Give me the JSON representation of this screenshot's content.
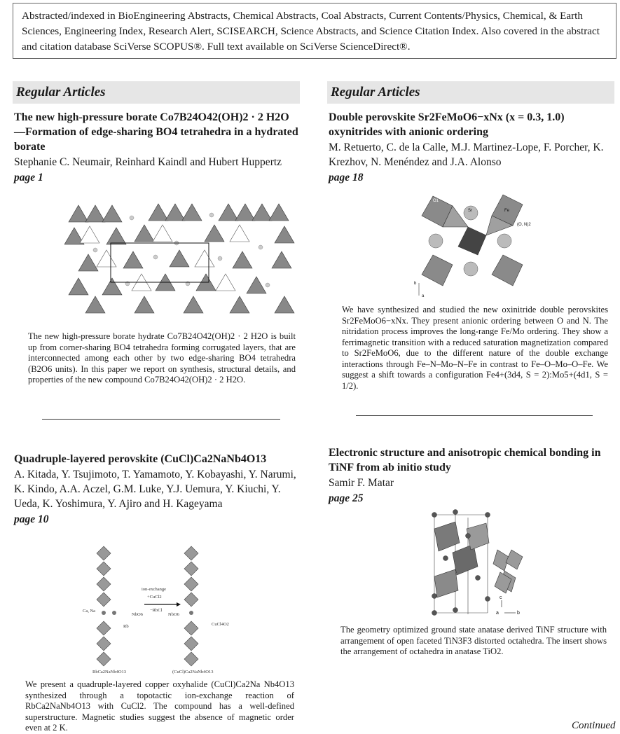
{
  "notice": "Abstracted/indexed in BioEngineering Abstracts, Chemical Abstracts, Coal Abstracts, Current Contents/Physics, Chemical, & Earth Sciences, Engineering Index, Research Alert, SCISEARCH, Science Abstracts, and Science Citation Index. Also covered in the abstract and citation database SciVerse SCOPUS®. Full text available on SciVerse ScienceDirect®.",
  "section_left": "Regular Articles",
  "section_right": "Regular Articles",
  "articles": [
    {
      "title": "The new high-pressure borate Co7B24O42(OH)2 · 2 H2O—Formation of edge-sharing BO4 tetrahedra in a hydrated borate",
      "authors": "Stephanie C. Neumair, Reinhard Kaindl and Hubert Huppertz",
      "page": "page 1",
      "abstract": "The new high-pressure borate hydrate Co7B24O42(OH)2 · 2 H2O is built up from corner-sharing BO4 tetrahedra forming corrugated layers, that are interconnected among each other by two edge-sharing BO4 tetrahedra (B2O6 units). In this paper we report on synthesis, structural details, and properties of the new compound Co7B24O42(OH)2 · 2 H2O."
    },
    {
      "title": "Double perovskite Sr2FeMoO6−xNx (x = 0.3, 1.0) oxynitrides with anionic ordering",
      "authors": "M. Retuerto, C. de la Calle, M.J. Martinez-Lope, F. Porcher, K. Krezhov, N. Menéndez and J.A. Alonso",
      "page": "page 18",
      "abstract": "We have synthesized and studied the new oxinitride double perovskites Sr2FeMoO6−xNx. They present anionic ordering between O and N. The nitridation process improves the long-range Fe/Mo ordering. They show a ferrimagnetic transition with a reduced saturation magnetization compared to Sr2FeMoO6, due to the different nature of the double exchange interactions through Fe–N–Mo–N–Fe in contrast to Fe–O–Mo–O–Fe. We suggest a shift towards a configuration Fe4+(3d4, S = 2):Mo5+(4d1, S = 1/2).",
      "fig_labels": {
        "o1": "O1",
        "sr": "Sr",
        "fe": "Fe",
        "on2": "(O, N)2",
        "b": "b",
        "a": "a"
      }
    },
    {
      "title": "Quadruple-layered perovskite (CuCl)Ca2NaNb4O13",
      "authors": "A. Kitada, Y. Tsujimoto, T. Yamamoto, Y. Kobayashi, Y. Narumi, K. Kindo, A.A. Aczel, G.M. Luke, Y.J. Uemura, Y. Kiuchi, Y. Ueda, K. Yoshimura, Y. Ajiro and H. Kageyama",
      "page": "page 10",
      "abstract": "We present a quadruple-layered copper oxyhalide (CuCl)Ca2Na Nb4O13 synthesized through a topotactic ion-exchange reaction of RbCa2NaNb4O13 with CuCl2. The compound has a well-defined superstructure. Magnetic studies suggest the absence of magnetic order even at 2 K.",
      "fig_labels": {
        "ion": "ion-exchange",
        "cucl2": "+CuCl2",
        "rbcl": "−RbCl",
        "nbo6a": "NbO6",
        "nbo6b": "NbO6",
        "rb": "Rb",
        "cucl4o2": "CuCl4O2",
        "left": "RbCa2NaNb4O13",
        "right": "(CuCl)Ca2NaNb4O13",
        "cana": "Ca, Na"
      }
    },
    {
      "title": "Electronic structure and anisotropic chemical bonding in TiNF from ab initio study",
      "authors": "Samir F. Matar",
      "page": "page 25",
      "abstract": "The geometry optimized ground state anatase derived TiNF structure with arrangement of open faceted TiN3F3 distorted octahedra. The insert shows the arrangement of octahedra in anatase TiO2.",
      "fig_labels": {
        "c": "c",
        "a": "a",
        "b": "b"
      }
    }
  ],
  "continued": "Continued"
}
